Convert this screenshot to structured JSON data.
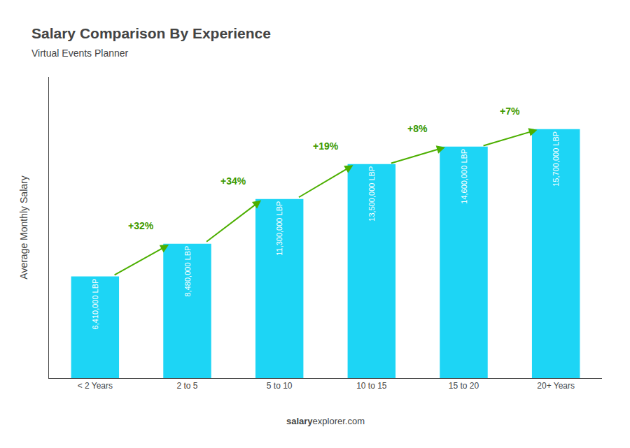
{
  "chart_data": {
    "type": "bar",
    "title": "Salary Comparison By Experience",
    "subtitle": "Virtual Events Planner",
    "categories": [
      "< 2 Years",
      "2 to 5",
      "5 to 10",
      "10 to 15",
      "15 to 20",
      "20+ Years"
    ],
    "values": [
      6410000,
      8480000,
      11300000,
      13500000,
      14600000,
      15700000
    ],
    "value_labels": [
      "6,410,000 LBP",
      "8,480,000 LBP",
      "11,300,000 LBP",
      "13,500,000 LBP",
      "14,600,000 LBP",
      "15,700,000 LBP"
    ],
    "data_labels": true,
    "color": "#1dd5f5",
    "ylabel": "Average Monthly Salary",
    "ylim": [
      0,
      19000000
    ],
    "grid": false,
    "tick_labels": "x",
    "annotations": [
      {
        "text": "+32%",
        "from": "< 2 Years",
        "to": "2 to 5"
      },
      {
        "text": "+34%",
        "from": "2 to 5",
        "to": "5 to 10"
      },
      {
        "text": "+19%",
        "from": "5 to 10",
        "to": "10 to 15"
      },
      {
        "text": "+8%",
        "from": "10 to 15",
        "to": "15 to 20"
      },
      {
        "text": "+7%",
        "from": "15 to 20",
        "to": "20+ Years"
      },
      {
        "text": "salary"
      },
      {
        "text": "explorer.com"
      }
    ]
  }
}
